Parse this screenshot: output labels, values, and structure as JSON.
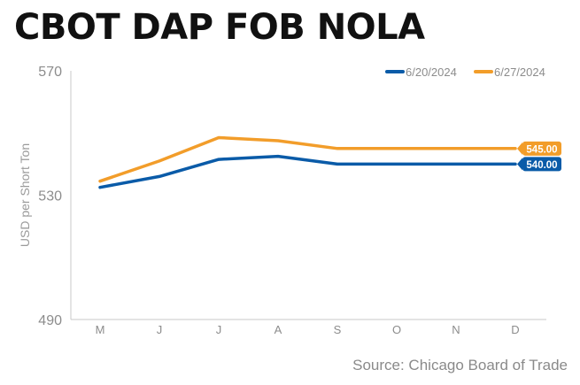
{
  "title": "CBOT DAP FOB NOLA",
  "source": "Source: Chicago Board of Trade",
  "chart_data": {
    "type": "line",
    "ylabel": "USD per Short Ton",
    "ylim": [
      490,
      570
    ],
    "yticks": [
      490,
      530,
      570
    ],
    "categories": [
      "M",
      "J",
      "J",
      "A",
      "S",
      "O",
      "N",
      "D"
    ],
    "legend_position": "top-right",
    "grid": false,
    "series": [
      {
        "name": "6/20/2024",
        "color": "#0a5ba8",
        "values": [
          532.5,
          536,
          541.5,
          542.5,
          540,
          540,
          540,
          540
        ],
        "end_label": "540.00"
      },
      {
        "name": "6/27/2024",
        "color": "#f29d2a",
        "values": [
          534.5,
          541,
          548.5,
          547.5,
          545,
          545,
          545,
          545
        ],
        "end_label": "545.00"
      }
    ]
  }
}
